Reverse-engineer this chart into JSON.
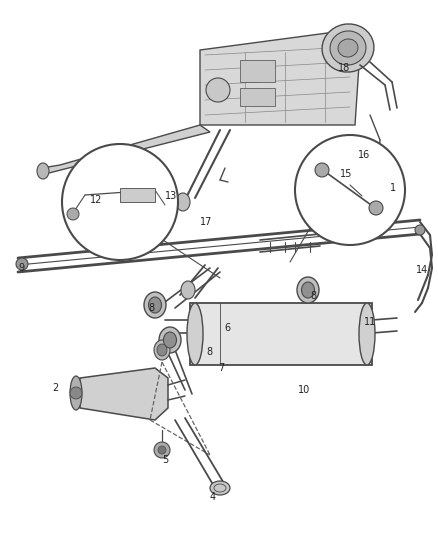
{
  "bg_color": "#ffffff",
  "lc": "#4a4a4a",
  "fig_w": 4.39,
  "fig_h": 5.33,
  "dpi": 100,
  "labels": [
    [
      "1",
      390,
      188
    ],
    [
      "2",
      52,
      388
    ],
    [
      "4",
      210,
      497
    ],
    [
      "5",
      162,
      460
    ],
    [
      "6",
      224,
      328
    ],
    [
      "7",
      218,
      368
    ],
    [
      "8",
      148,
      308
    ],
    [
      "8",
      310,
      296
    ],
    [
      "8",
      206,
      352
    ],
    [
      "9",
      18,
      268
    ],
    [
      "10",
      298,
      390
    ],
    [
      "11",
      364,
      322
    ],
    [
      "14",
      416,
      270
    ],
    [
      "12",
      90,
      200
    ],
    [
      "13",
      165,
      196
    ],
    [
      "15",
      340,
      174
    ],
    [
      "16",
      358,
      155
    ],
    [
      "17",
      200,
      222
    ],
    [
      "18",
      338,
      68
    ]
  ],
  "label_fs": 7.0
}
